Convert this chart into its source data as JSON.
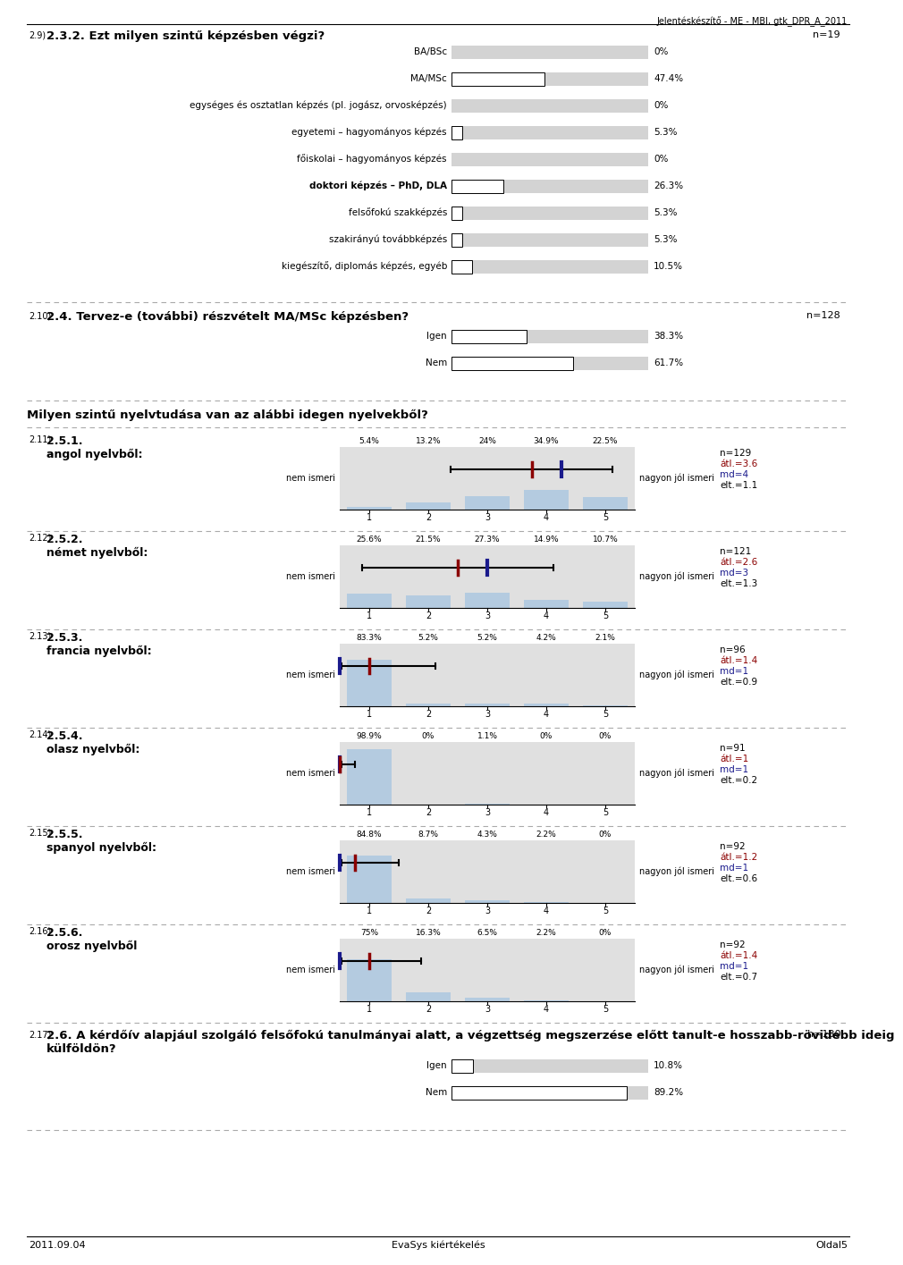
{
  "header_text": "Jelentéskészítő - ME - MBI, gtk_DPR_A_2011",
  "section1_num": "2.9)",
  "section1_title": "2.3.2. Ezt milyen szintű képzésben végzi?",
  "section1_n": "n=19",
  "section1_bars": [
    {
      "label": "BA/BSc",
      "value": 0.0,
      "pct": "0%",
      "bold": false
    },
    {
      "label": "MA/MSc",
      "value": 47.4,
      "pct": "47.4%",
      "bold": false
    },
    {
      "label": "egységes és osztatlan képzés (pl. jogász, orvosképzés)",
      "value": 0.0,
      "pct": "0%",
      "bold": false
    },
    {
      "label": "egyetemi – hagyományos képzés",
      "value": 5.3,
      "pct": "5.3%",
      "bold": false
    },
    {
      "label": "főiskolai – hagyományos képzés",
      "value": 0.0,
      "pct": "0%",
      "bold": false
    },
    {
      "label": "doktori képzés – PhD, DLA",
      "value": 26.3,
      "pct": "26.3%",
      "bold": true
    },
    {
      "label": "felsőfokú szakképzés",
      "value": 5.3,
      "pct": "5.3%",
      "bold": false
    },
    {
      "label": "szakirányú továbbképzés",
      "value": 5.3,
      "pct": "5.3%",
      "bold": false
    },
    {
      "label": "kiegészítő, diplomás képzés, egyéb",
      "value": 10.5,
      "pct": "10.5%",
      "bold": false
    }
  ],
  "section2_num": "2.10)",
  "section2_title": "2.4. Tervez-e (további) részvételt MA/MSc képzésben?",
  "section2_n": "n=128",
  "section2_bars": [
    {
      "label": "Igen",
      "value": 38.3,
      "pct": "38.3%"
    },
    {
      "label": "Nem",
      "value": 61.7,
      "pct": "61.7%"
    }
  ],
  "section3_title": "Milyen szintű nyelvtudása van az alábbi idegen nyelvekből?",
  "likert_sections": [
    {
      "num": "2.11)",
      "label1": "2.5.1.",
      "label2": "angol nyelvből:",
      "pcts": [
        "5.4%",
        "13.2%",
        "24%",
        "34.9%",
        "22.5%"
      ],
      "values": [
        5.4,
        13.2,
        24.0,
        34.9,
        22.5
      ],
      "mean": 3.6,
      "median": 4,
      "sd": 1.1,
      "n": "n=129",
      "atl": "átl.=3.6",
      "md": "md=4",
      "elt": "elt.=1.1"
    },
    {
      "num": "2.12)",
      "label1": "2.5.2.",
      "label2": "német nyelvből:",
      "pcts": [
        "25.6%",
        "21.5%",
        "27.3%",
        "14.9%",
        "10.7%"
      ],
      "values": [
        25.6,
        21.5,
        27.3,
        14.9,
        10.7
      ],
      "mean": 2.6,
      "median": 3,
      "sd": 1.3,
      "n": "n=121",
      "atl": "átl.=2.6",
      "md": "md=3",
      "elt": "elt.=1.3"
    },
    {
      "num": "2.13)",
      "label1": "2.5.3.",
      "label2": "francia nyelvből:",
      "pcts": [
        "83.3%",
        "5.2%",
        "5.2%",
        "4.2%",
        "2.1%"
      ],
      "values": [
        83.3,
        5.2,
        5.2,
        4.2,
        2.1
      ],
      "mean": 1.4,
      "median": 1,
      "sd": 0.9,
      "n": "n=96",
      "atl": "átl.=1.4",
      "md": "md=1",
      "elt": "elt.=0.9"
    },
    {
      "num": "2.14)",
      "label1": "2.5.4.",
      "label2": "olasz nyelvből:",
      "pcts": [
        "98.9%",
        "0%",
        "1.1%",
        "0%",
        "0%"
      ],
      "values": [
        98.9,
        0.0,
        1.1,
        0.0,
        0.0
      ],
      "mean": 1.0,
      "median": 1,
      "sd": 0.2,
      "n": "n=91",
      "atl": "átl.=1",
      "md": "md=1",
      "elt": "elt.=0.2"
    },
    {
      "num": "2.15)",
      "label1": "2.5.5.",
      "label2": "spanyol nyelvből:",
      "pcts": [
        "84.8%",
        "8.7%",
        "4.3%",
        "2.2%",
        "0%"
      ],
      "values": [
        84.8,
        8.7,
        4.3,
        2.2,
        0.0
      ],
      "mean": 1.2,
      "median": 1,
      "sd": 0.6,
      "n": "n=92",
      "atl": "átl.=1.2",
      "md": "md=1",
      "elt": "elt.=0.6"
    },
    {
      "num": "2.16)",
      "label1": "2.5.6.",
      "label2": "orosz nyelvből",
      "pcts": [
        "75%",
        "16.3%",
        "6.5%",
        "2.2%",
        "0%"
      ],
      "values": [
        75.0,
        16.3,
        6.5,
        2.2,
        0.0
      ],
      "mean": 1.4,
      "median": 1,
      "sd": 0.7,
      "n": "n=92",
      "atl": "átl.=1.4",
      "md": "md=1",
      "elt": "elt.=0.7"
    }
  ],
  "section_last_num": "2.17)",
  "section_last_title_line1": "2.6. A kérdőív alapjául szolgáló felsőfokú tanulmányai alatt, a végzettség megszerzése előtt tanult-e hosszabb-rövidebb ideig",
  "section_last_title_line2": "külföldön?",
  "section_last_n": "n=130",
  "section_last_bars": [
    {
      "label": "Igen",
      "value": 10.8,
      "pct": "10.8%"
    },
    {
      "label": "Nem",
      "value": 89.2,
      "pct": "89.2%"
    }
  ],
  "footer_left": "2011.09.04",
  "footer_mid": "EvaSys kiértékelés",
  "footer_right": "Oldal5",
  "bar_bg_color": "#d3d3d3",
  "bar_fill_color": "#ffffff",
  "bar_outline_color": "#000000",
  "light_blue": "#adc8e0",
  "dark_blue": "#1a1a8c",
  "mean_color": "#8b0000",
  "median_color": "#1a1a8c"
}
